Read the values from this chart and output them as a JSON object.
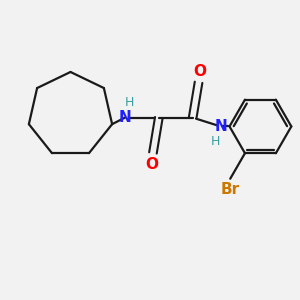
{
  "background_color": "#f2f2f2",
  "bond_color": "#1a1a1a",
  "N_color": "#2020ff",
  "O_color": "#ff0000",
  "Br_color": "#cc7700",
  "H_color": "#3a9e9e",
  "figsize": [
    3.0,
    3.0
  ],
  "dpi": 100,
  "lw": 1.6,
  "xlim": [
    0,
    10.0
  ],
  "ylim": [
    0,
    10.0
  ]
}
